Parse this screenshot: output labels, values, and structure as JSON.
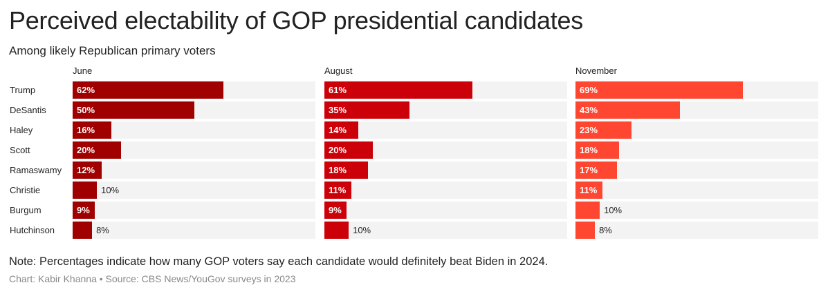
{
  "chart_data": {
    "type": "bar",
    "orientation": "horizontal",
    "layout": "small-multiples",
    "title": "Perceived electability of GOP presidential candidates",
    "subtitle": "Among likely Republican primary voters",
    "categories": [
      "Trump",
      "DeSantis",
      "Haley",
      "Scott",
      "Ramaswamy",
      "Christie",
      "Burgum",
      "Hutchinson"
    ],
    "xlim": [
      0,
      100
    ],
    "value_suffix": "%",
    "grid": false,
    "series": [
      {
        "name": "June",
        "color": "#a00000",
        "values": [
          62,
          50,
          16,
          20,
          12,
          10,
          9,
          8
        ]
      },
      {
        "name": "August",
        "color": "#cc0009",
        "values": [
          61,
          35,
          14,
          20,
          18,
          11,
          9,
          10
        ]
      },
      {
        "name": "November",
        "color": "#ff4630",
        "values": [
          69,
          43,
          23,
          18,
          17,
          11,
          10,
          8
        ]
      }
    ],
    "label_inside": [
      [
        true,
        true,
        true,
        true,
        true,
        false,
        true,
        false
      ],
      [
        true,
        true,
        true,
        true,
        true,
        true,
        true,
        false
      ],
      [
        true,
        true,
        true,
        true,
        true,
        true,
        false,
        false
      ]
    ],
    "note": "Note: Percentages indicate how many GOP voters say each candidate would definitely beat Biden in 2024.",
    "credit": "Chart: Kabir Khanna • Source: CBS News/YouGov surveys in 2023"
  }
}
